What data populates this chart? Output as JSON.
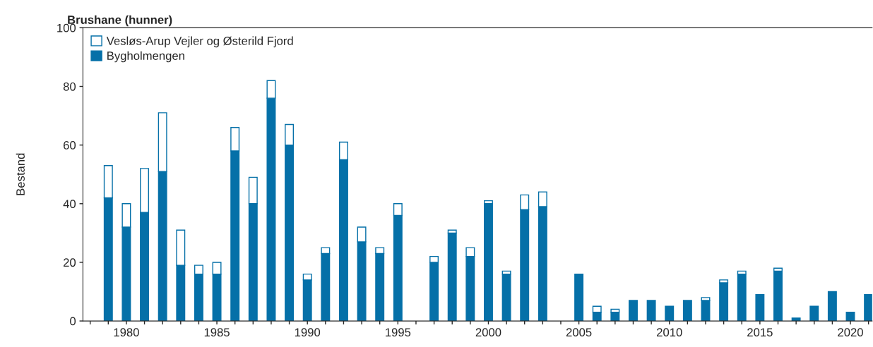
{
  "chart_data": {
    "type": "bar",
    "stacked": true,
    "title": "Brushane (hunner)",
    "ylabel": "Bestand",
    "x": [
      1979,
      1980,
      1981,
      1982,
      1983,
      1984,
      1985,
      1986,
      1987,
      1988,
      1989,
      1990,
      1991,
      1992,
      1993,
      1994,
      1995,
      1996,
      1997,
      1998,
      1999,
      2000,
      2001,
      2002,
      2003,
      2004,
      2005,
      2006,
      2007,
      2008,
      2009,
      2010,
      2011,
      2012,
      2013,
      2014,
      2015,
      2016,
      2017,
      2018,
      2019,
      2020,
      2021
    ],
    "series": [
      {
        "name": "Bygholmengen",
        "color": "#0570a8",
        "values": [
          42,
          32,
          37,
          51,
          19,
          16,
          16,
          58,
          40,
          76,
          60,
          14,
          23,
          55,
          27,
          23,
          36,
          null,
          20,
          30,
          22,
          40,
          16,
          38,
          39,
          null,
          16,
          3,
          3,
          7,
          7,
          5,
          7,
          7,
          13,
          16,
          9,
          17,
          1,
          5,
          10,
          3,
          9
        ]
      },
      {
        "name": "Vesløs-Arup Vejler og Østerild Fjord",
        "color": "#ffffff",
        "values": [
          11,
          8,
          15,
          20,
          12,
          3,
          4,
          8,
          9,
          6,
          7,
          2,
          2,
          6,
          5,
          2,
          4,
          null,
          2,
          1,
          3,
          1,
          1,
          5,
          5,
          null,
          0,
          2,
          1,
          0,
          0,
          0,
          0,
          1,
          1,
          1,
          0,
          1,
          0,
          0,
          0,
          0,
          0
        ]
      }
    ],
    "xlim": [
      1977.6,
      2021.2
    ],
    "xticks": [
      {
        "value": 1978,
        "label": null
      },
      {
        "value": 1979,
        "label": null
      },
      1980,
      {
        "value": 1981,
        "label": null
      },
      {
        "value": 1982,
        "label": null
      },
      {
        "value": 1983,
        "label": null
      },
      {
        "value": 1984,
        "label": null
      },
      1985,
      {
        "value": 1986,
        "label": null
      },
      {
        "value": 1987,
        "label": null
      },
      {
        "value": 1988,
        "label": null
      },
      {
        "value": 1989,
        "label": null
      },
      1990,
      {
        "value": 1991,
        "label": null
      },
      {
        "value": 1992,
        "label": null
      },
      {
        "value": 1993,
        "label": null
      },
      {
        "value": 1994,
        "label": null
      },
      1995,
      {
        "value": 1996,
        "label": null
      },
      {
        "value": 1997,
        "label": null
      },
      {
        "value": 1998,
        "label": null
      },
      {
        "value": 1999,
        "label": null
      },
      2000,
      {
        "value": 2001,
        "label": null
      },
      {
        "value": 2002,
        "label": null
      },
      {
        "value": 2003,
        "label": null
      },
      {
        "value": 2004,
        "label": null
      },
      2005,
      {
        "value": 2006,
        "label": null
      },
      {
        "value": 2007,
        "label": null
      },
      {
        "value": 2008,
        "label": null
      },
      {
        "value": 2009,
        "label": null
      },
      2010,
      {
        "value": 2011,
        "label": null
      },
      {
        "value": 2012,
        "label": null
      },
      {
        "value": 2013,
        "label": null
      },
      {
        "value": 2014,
        "label": null
      },
      2015,
      {
        "value": 2016,
        "label": null
      },
      {
        "value": 2017,
        "label": null
      },
      {
        "value": 2018,
        "label": null
      },
      {
        "value": 2019,
        "label": null
      },
      2020,
      {
        "value": 2021,
        "label": null
      }
    ],
    "ylim": [
      0,
      100
    ],
    "yticks": [
      0,
      20,
      40,
      60,
      80,
      100
    ],
    "grid": false,
    "legend": "top left"
  }
}
